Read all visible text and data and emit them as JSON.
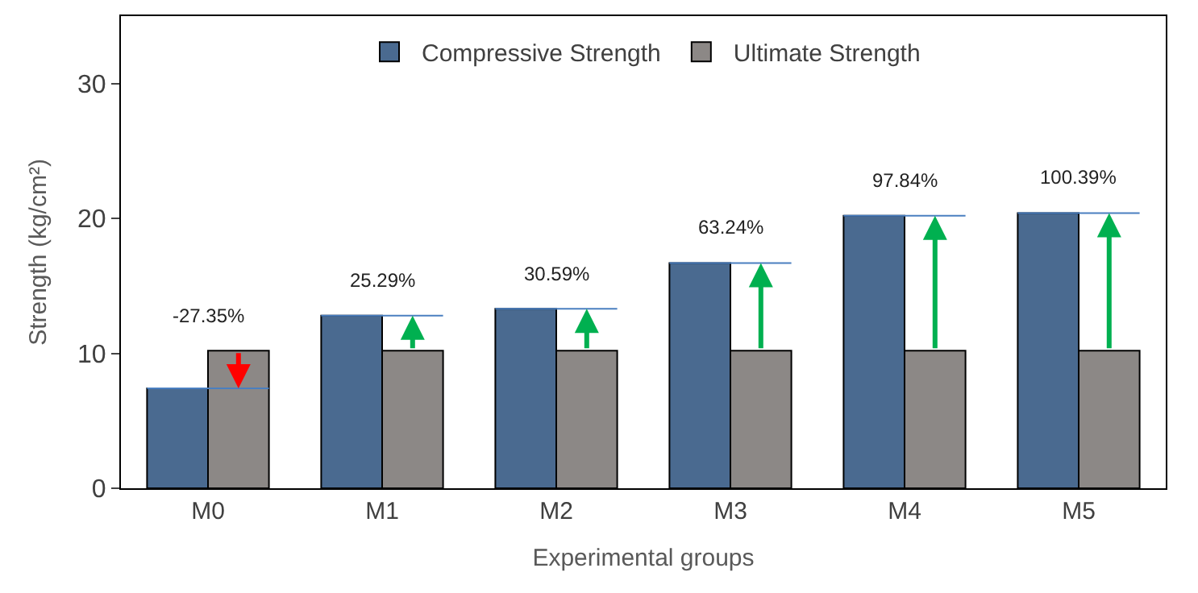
{
  "chart_data": {
    "type": "bar",
    "xlabel": "Experimental groups",
    "ylabel": "Strength (kg/cm²)",
    "categories": [
      "M0",
      "M1",
      "M2",
      "M3",
      "M4",
      "M5"
    ],
    "series": [
      {
        "name": "Compressive Strength",
        "color": "#4a6a90",
        "values": [
          7.4,
          12.8,
          13.3,
          16.7,
          20.2,
          20.4
        ]
      },
      {
        "name": "Ultimate Strength",
        "color": "#8c8886",
        "values": [
          10.2,
          10.2,
          10.2,
          10.2,
          10.2,
          10.2
        ]
      }
    ],
    "ref_lines": [
      {
        "axis": "y",
        "value": 7.4,
        "color": "#4a7fc0"
      },
      {
        "axis": "y",
        "value": 12.8,
        "color": "#4a7fc0"
      },
      {
        "axis": "y",
        "value": 13.3,
        "color": "#4a7fc0"
      },
      {
        "axis": "y",
        "value": 16.7,
        "color": "#4a7fc0"
      },
      {
        "axis": "y",
        "value": 20.2,
        "color": "#4a7fc0"
      },
      {
        "axis": "y",
        "value": 20.4,
        "color": "#4a7fc0"
      }
    ],
    "ylim": [
      0,
      35
    ],
    "yticks": [
      0,
      10,
      20,
      30
    ],
    "legend": "top",
    "annotations": [
      "-27.35%",
      "25.29%",
      "30.59%",
      "63.24%",
      "97.84%",
      "100.39%"
    ]
  }
}
